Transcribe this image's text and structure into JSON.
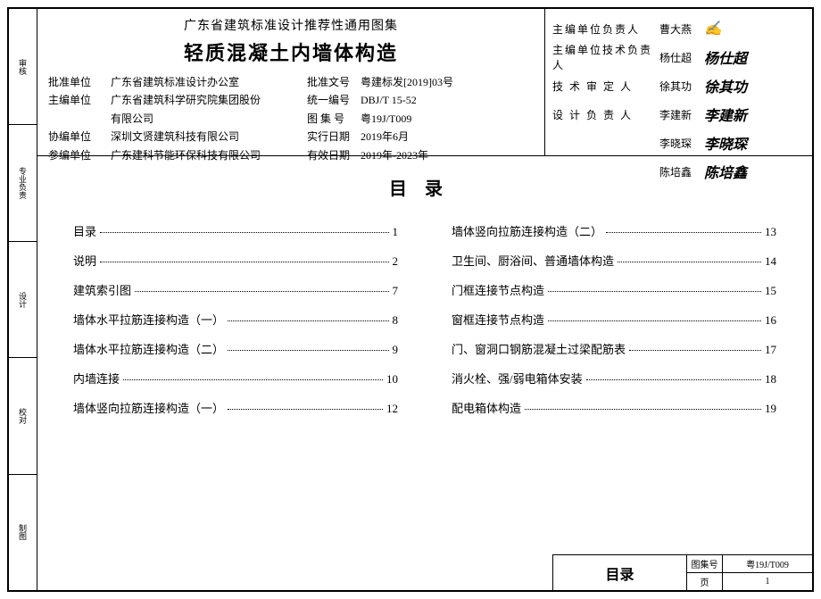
{
  "header": {
    "title_small": "广东省建筑标准设计推荐性通用图集",
    "title_large": "轻质混凝土内墙体构造",
    "info_rows": [
      {
        "label": "批准单位",
        "value": "广东省建筑标准设计办公室",
        "label2": "批准文号",
        "value2": "粤建标发[2019]03号"
      },
      {
        "label": "主编单位",
        "value": "广东省建筑科学研究院集团股份",
        "label2": "统一编号",
        "value2": "DBJ/T 15-52"
      },
      {
        "label": "",
        "value": "有限公司",
        "label2": "图 集 号",
        "value2": "粤19J/T009"
      },
      {
        "label": "协编单位",
        "value": "深圳文贤建筑科技有限公司",
        "label2": "实行日期",
        "value2": "2019年6月"
      },
      {
        "label": "参编单位",
        "value": "广东建科节能环保科技有限公司",
        "label2": "有效日期",
        "value2": "2019年-2023年"
      }
    ]
  },
  "signatures": [
    {
      "label": "主编单位负责人",
      "name": "曹大燕",
      "mark": "✍"
    },
    {
      "label": "主编单位技术负责人",
      "name": "杨仕超",
      "mark": "杨仕超"
    },
    {
      "label": "技 术 审 定 人",
      "name": "徐其功",
      "mark": "徐其功"
    },
    {
      "label": "设 计 负 责 人",
      "name": "李建新",
      "mark": "李建新"
    },
    {
      "label": "",
      "name": "李晓琛",
      "mark": "李晓琛"
    },
    {
      "label": "",
      "name": "陈培鑫",
      "mark": "陈培鑫"
    }
  ],
  "stamp_cells": [
    "审核",
    "专业负责",
    "设计",
    "校对",
    "制图"
  ],
  "toc": {
    "title": "目录",
    "left": [
      {
        "text": "目录",
        "page": "1"
      },
      {
        "text": "说明",
        "page": "2"
      },
      {
        "text": "建筑索引图",
        "page": "7"
      },
      {
        "text": "墙体水平拉筋连接构造（一）",
        "page": "8"
      },
      {
        "text": "墙体水平拉筋连接构造（二）",
        "page": "9"
      },
      {
        "text": "内墙连接",
        "page": "10"
      },
      {
        "text": "墙体竖向拉筋连接构造（一）",
        "page": "12"
      }
    ],
    "right": [
      {
        "text": "墙体竖向拉筋连接构造（二）",
        "page": "13"
      },
      {
        "text": "卫生间、厨浴间、普通墙体构造",
        "page": "14"
      },
      {
        "text": "门框连接节点构造",
        "page": "15"
      },
      {
        "text": "窗框连接节点构造",
        "page": "16"
      },
      {
        "text": "门、窗洞口钢筋混凝土过梁配筋表",
        "page": "17"
      },
      {
        "text": "消火栓、强/弱电箱体安装",
        "page": "18"
      },
      {
        "text": "配电箱体构造",
        "page": "19"
      }
    ]
  },
  "footer": {
    "title": "目录",
    "atlas_label": "图集号",
    "atlas_value": "粤19J/T009",
    "page_label": "页",
    "page_value": "1"
  }
}
